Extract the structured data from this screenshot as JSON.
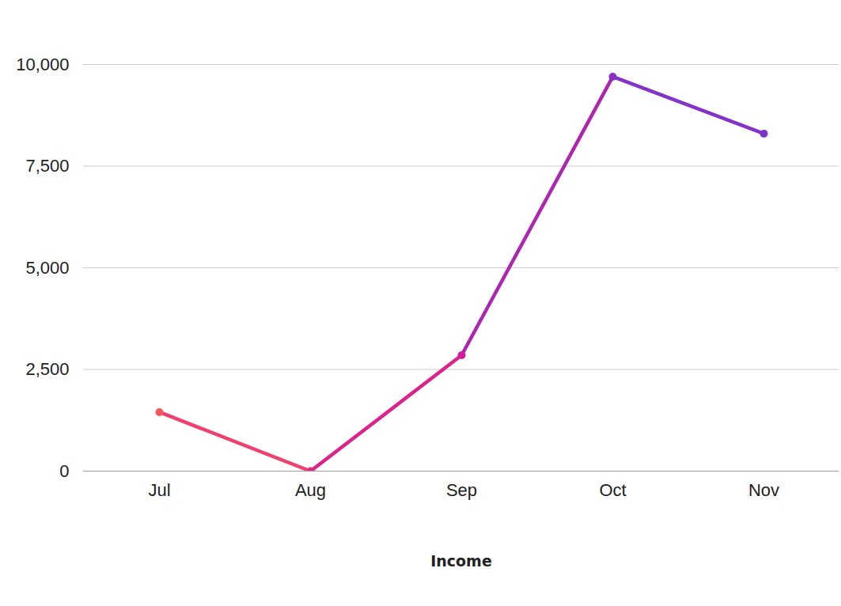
{
  "chart_data": {
    "type": "line",
    "x_label": "Income",
    "categories": [
      "Jul",
      "Aug",
      "Sep",
      "Oct",
      "Nov"
    ],
    "values": [
      1450,
      0,
      2850,
      9700,
      8300
    ],
    "colors": [
      "#f7575e",
      "#e62a7c",
      "#d21c9c",
      "#8a30c4",
      "#7b35c9"
    ],
    "marker": "circle",
    "ylim": [
      0,
      10000
    ],
    "yticks": [
      0,
      {
        "value": 2500,
        "label": "2,500"
      },
      {
        "value": 5000,
        "label": "5,000"
      },
      {
        "value": 7500,
        "label": "7,500"
      },
      {
        "value": 10000,
        "label": "10,000"
      }
    ],
    "grid": true
  }
}
